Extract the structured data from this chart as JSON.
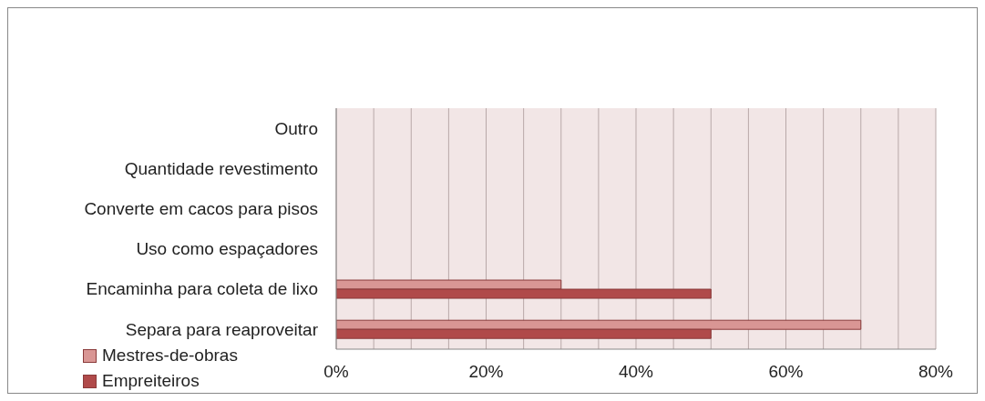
{
  "chart_data": {
    "type": "bar",
    "orientation": "horizontal",
    "categories": [
      "Outro",
      "Quantidade revestimento",
      "Converte em cacos para pisos",
      "Uso como espaçadores",
      "Encaminha para coleta de lixo",
      "Separa para reaproveitar"
    ],
    "series": [
      {
        "name": "Mestres-de-obras",
        "color": "#d99694",
        "values": [
          0,
          0,
          0,
          0,
          30,
          70
        ]
      },
      {
        "name": "Empreiteiros",
        "color": "#b04a4a",
        "values": [
          0,
          0,
          0,
          0,
          50,
          50
        ]
      }
    ],
    "xlim": [
      0,
      80
    ],
    "xticks": [
      {
        "value": 0,
        "label": "0%"
      },
      {
        "value": 5,
        "label": null
      },
      {
        "value": 10,
        "label": null
      },
      {
        "value": 15,
        "label": null
      },
      {
        "value": 20,
        "label": "20%"
      },
      {
        "value": 25,
        "label": null
      },
      {
        "value": 30,
        "label": null
      },
      {
        "value": 35,
        "label": null
      },
      {
        "value": 40,
        "label": "40%"
      },
      {
        "value": 45,
        "label": null
      },
      {
        "value": 50,
        "label": null
      },
      {
        "value": 55,
        "label": null
      },
      {
        "value": 60,
        "label": "60%"
      },
      {
        "value": 65,
        "label": null
      },
      {
        "value": 70,
        "label": null
      },
      {
        "value": 75,
        "label": null
      },
      {
        "value": 80,
        "label": "80%"
      }
    ],
    "grid": "x",
    "legend": "bottom left"
  }
}
